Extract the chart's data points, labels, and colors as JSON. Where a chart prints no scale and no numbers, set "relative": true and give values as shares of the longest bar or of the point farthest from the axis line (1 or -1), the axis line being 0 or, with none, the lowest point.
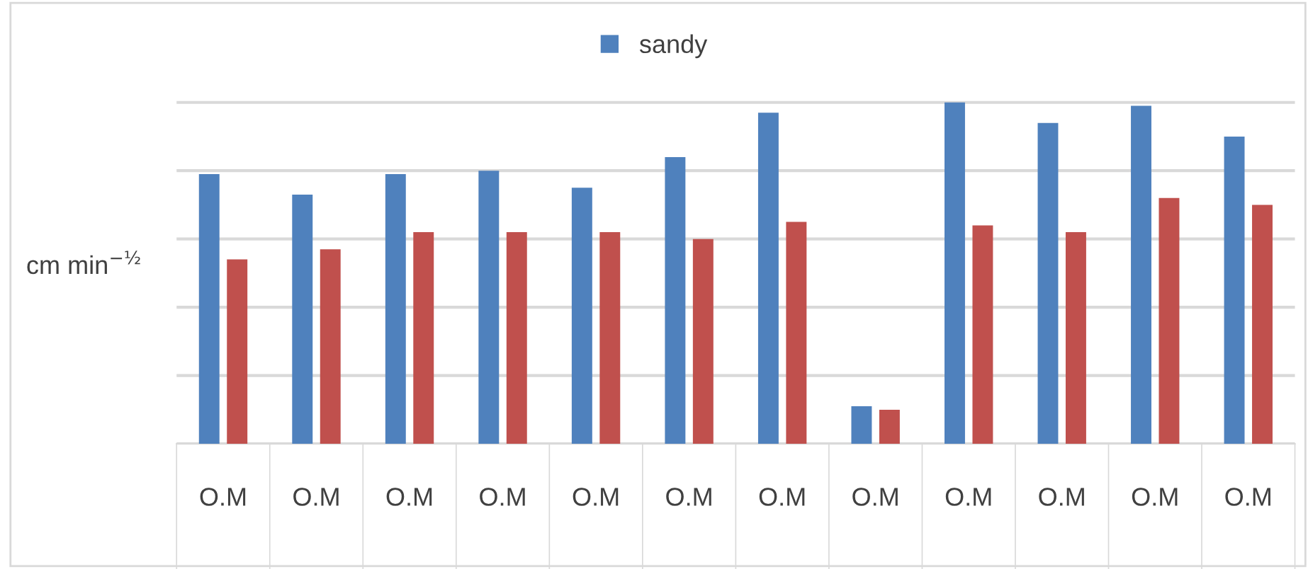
{
  "chart_data": {
    "type": "bar",
    "ylabel": "cm min$^{−½}$",
    "relative": true,
    "categories": [
      "O.M",
      "O.M",
      "O.M",
      "O.M",
      "O.M",
      "O.M",
      "O.M",
      "O.M",
      "O.M",
      "O.M",
      "O.M",
      "O.M"
    ],
    "series": [
      {
        "name": "sandy",
        "color": "#4f81bd",
        "values": [
          0.79,
          0.73,
          0.79,
          0.8,
          0.75,
          0.84,
          0.97,
          0.11,
          1,
          0.94,
          0.99,
          0.9
        ]
      },
      {
        "color": "#c0504d",
        "values": [
          0.54,
          0.57,
          0.62,
          0.62,
          0.62,
          0.6,
          0.65,
          0.1,
          0.64,
          0.62,
          0.72,
          0.7
        ]
      }
    ],
    "grid": "y",
    "legend": "top"
  }
}
